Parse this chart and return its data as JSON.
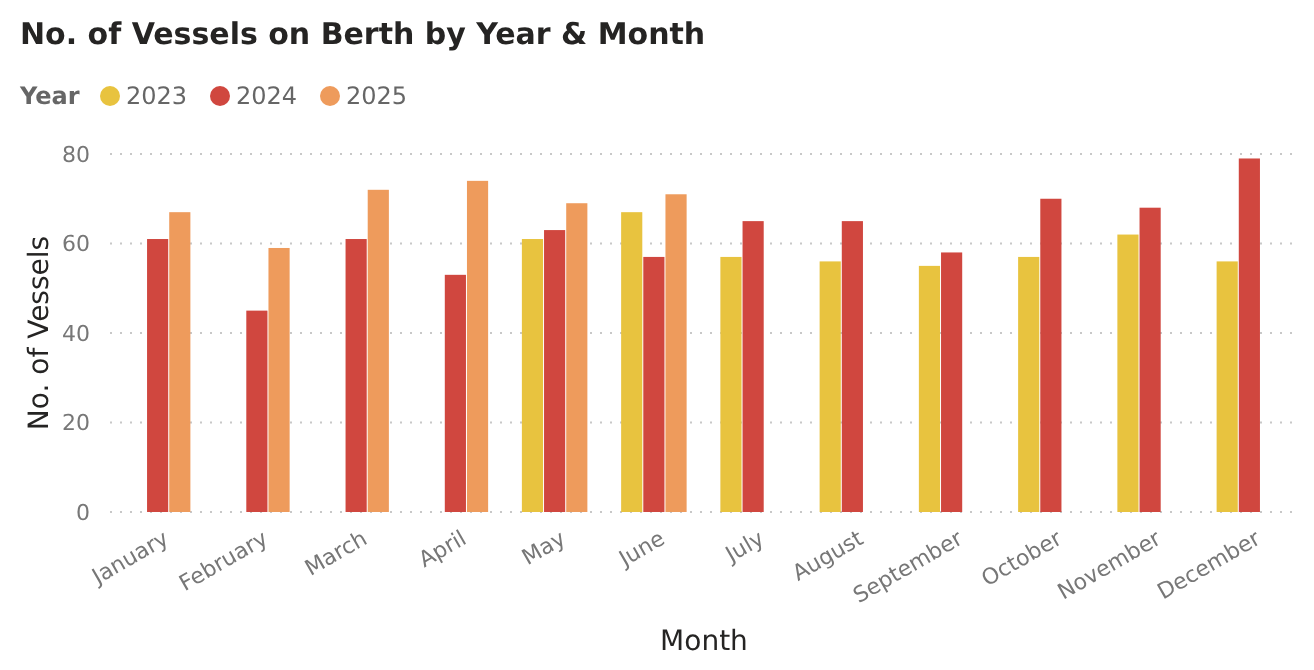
{
  "chart_data": {
    "type": "bar",
    "title": "No. of Vessels on Berth by Year & Month",
    "xlabel": "Month",
    "ylabel": "No. of Vessels",
    "legend_title": "Year",
    "legend": "top left",
    "grid": "y",
    "categories": [
      "January",
      "February",
      "March",
      "April",
      "May",
      "June",
      "July",
      "August",
      "September",
      "October",
      "November",
      "December"
    ],
    "ylim": [
      0,
      80
    ],
    "yticks": [
      0,
      20,
      40,
      60,
      80
    ],
    "series": [
      {
        "name": "2023",
        "color": "#e8c33f",
        "values": [
          null,
          null,
          null,
          null,
          61,
          67,
          57,
          56,
          55,
          57,
          62,
          56
        ]
      },
      {
        "name": "2024",
        "color": "#d0473f",
        "values": [
          61,
          45,
          61,
          53,
          63,
          57,
          65,
          65,
          58,
          70,
          68,
          79
        ]
      },
      {
        "name": "2025",
        "color": "#ee9b5c",
        "values": [
          67,
          59,
          72,
          74,
          69,
          71,
          null,
          null,
          null,
          null,
          null,
          null
        ]
      }
    ]
  }
}
